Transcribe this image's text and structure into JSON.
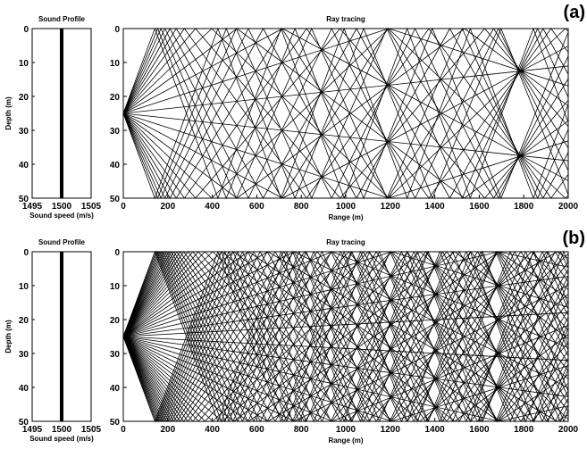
{
  "chart_data": [
    {
      "type": "line",
      "panel_label": "(a)",
      "sound_profile": {
        "title": "Sound Profile",
        "xlabel": "Sound speed (m/s)",
        "ylabel": "Depth (m)",
        "xlim": [
          1495,
          1505
        ],
        "ylim": [
          0,
          50
        ],
        "y_inverted": true,
        "xticks": [
          1495,
          1500,
          1505
        ],
        "yticks": [
          0,
          10,
          20,
          30,
          40,
          50
        ],
        "series": [
          {
            "x": [
              1500,
              1500
            ],
            "y": [
              0,
              50
            ]
          }
        ]
      },
      "ray_tracing": {
        "title": "Ray tracing",
        "xlabel": "Range (m)",
        "ylabel": "Depth (m)",
        "xlim": [
          0,
          2000
        ],
        "ylim": [
          0,
          50
        ],
        "y_inverted": true,
        "xticks": [
          0,
          200,
          400,
          600,
          800,
          1000,
          1200,
          1400,
          1600,
          1800,
          2000
        ],
        "yticks": [
          0,
          10,
          20,
          30,
          40,
          50
        ],
        "source": {
          "range": 0,
          "depth": 25
        },
        "rays": {
          "count": 26,
          "max_launch_angle_deg": 10
        }
      }
    },
    {
      "type": "line",
      "panel_label": "(b)",
      "sound_profile": {
        "title": "Sound Profile",
        "xlabel": "Sound speed (m/s)",
        "ylabel": "Depth (m)",
        "xlim": [
          1495,
          1505
        ],
        "ylim": [
          0,
          50
        ],
        "y_inverted": true,
        "xticks": [
          1495,
          1500,
          1505
        ],
        "yticks": [
          0,
          10,
          20,
          30,
          40,
          50
        ],
        "series": [
          {
            "x": [
              1500,
              1500
            ],
            "y": [
              0,
              50
            ]
          }
        ]
      },
      "ray_tracing": {
        "title": "Ray tracing",
        "xlabel": "Range (m)",
        "ylabel": "Depth (m)",
        "xlim": [
          0,
          2000
        ],
        "ylim": [
          0,
          50
        ],
        "y_inverted": true,
        "xticks": [
          0,
          200,
          400,
          600,
          800,
          1000,
          1200,
          1400,
          1600,
          1800,
          2000
        ],
        "yticks": [
          0,
          10,
          20,
          30,
          40,
          50
        ],
        "source": {
          "range": 0,
          "depth": 25
        },
        "rays": {
          "count": 60,
          "max_launch_angle_deg": 10
        }
      }
    }
  ]
}
